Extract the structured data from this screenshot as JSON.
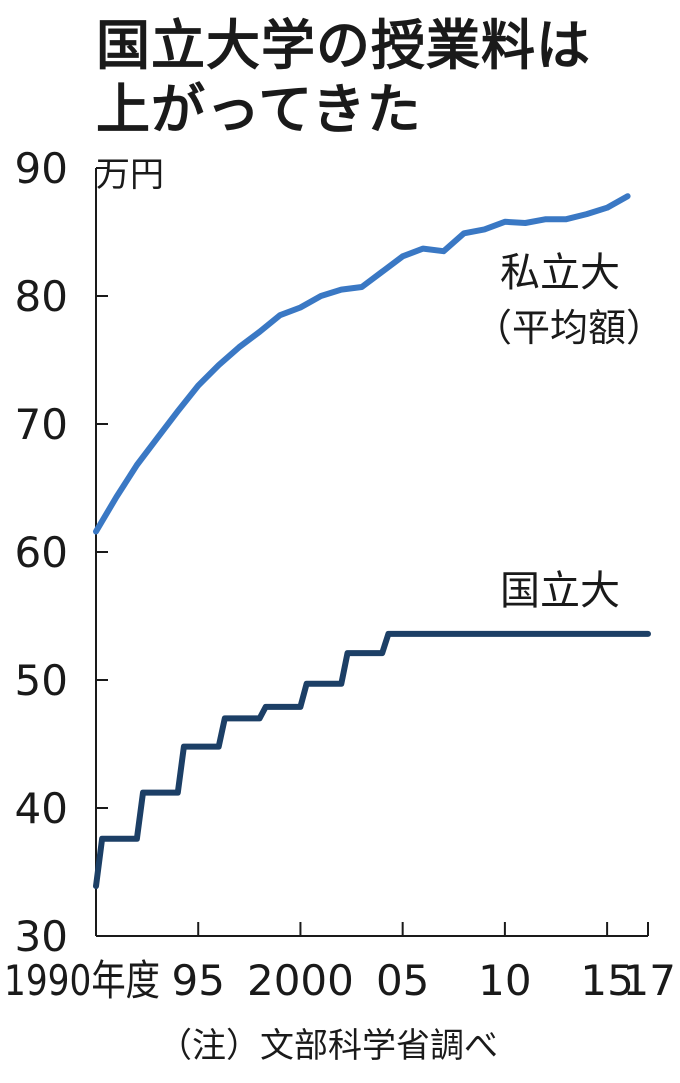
{
  "title_lines": [
    "国立大学の授業料は",
    "上がってきた"
  ],
  "note": "（注）文部科学省調べ",
  "chart_data": {
    "type": "line",
    "y_unit": "万円",
    "ylim": [
      30,
      90
    ],
    "y_ticks": [
      30,
      40,
      50,
      60,
      70,
      80,
      90
    ],
    "xlim": [
      1990,
      2017
    ],
    "x_ticks": [
      {
        "year": 1990,
        "label": "1990年度"
      },
      {
        "year": 1995,
        "label": "95"
      },
      {
        "year": 2000,
        "label": "2000"
      },
      {
        "year": 2005,
        "label": "05"
      },
      {
        "year": 2010,
        "label": "10"
      },
      {
        "year": 2015,
        "label": "15"
      },
      {
        "year": 2017,
        "label": "17"
      }
    ],
    "grid": false,
    "series": [
      {
        "name": "私立大",
        "name_sub": "（平均額）",
        "color": "#3a78c4",
        "x": [
          1990,
          1991,
          1992,
          1993,
          1994,
          1995,
          1996,
          1997,
          1998,
          1999,
          2000,
          2001,
          2002,
          2003,
          2004,
          2005,
          2006,
          2007,
          2008,
          2009,
          2010,
          2011,
          2012,
          2013,
          2014,
          2015,
          2016
        ],
        "values": [
          61.6,
          64.3,
          66.8,
          68.9,
          71.0,
          73.0,
          74.6,
          76.0,
          77.2,
          78.5,
          79.1,
          80.0,
          80.5,
          80.7,
          81.9,
          83.1,
          83.7,
          83.5,
          84.9,
          85.2,
          85.8,
          85.7,
          86.0,
          86.0,
          86.4,
          86.9,
          87.8
        ]
      },
      {
        "name": "国立大",
        "color": "#1c3f66",
        "x": [
          1990,
          1990.3,
          1991,
          1991.3,
          1992,
          1992.3,
          1993,
          1993.3,
          1994,
          1994.3,
          1995,
          1995.3,
          1996,
          1996.3,
          1997,
          1997.3,
          1998,
          1998.3,
          1999,
          1999.3,
          2000,
          2000.3,
          2001,
          2001.3,
          2002,
          2002.3,
          2003,
          2003.3,
          2004,
          2004.3,
          2005,
          2017
        ],
        "values": [
          33.9,
          37.6,
          37.6,
          37.6,
          37.6,
          41.2,
          41.2,
          41.2,
          41.2,
          44.8,
          44.8,
          44.8,
          44.8,
          47.0,
          47.0,
          47.0,
          47.0,
          47.9,
          47.9,
          47.9,
          47.9,
          49.7,
          49.7,
          49.7,
          49.7,
          52.1,
          52.1,
          52.1,
          52.1,
          53.6,
          53.6,
          53.6
        ]
      }
    ]
  }
}
